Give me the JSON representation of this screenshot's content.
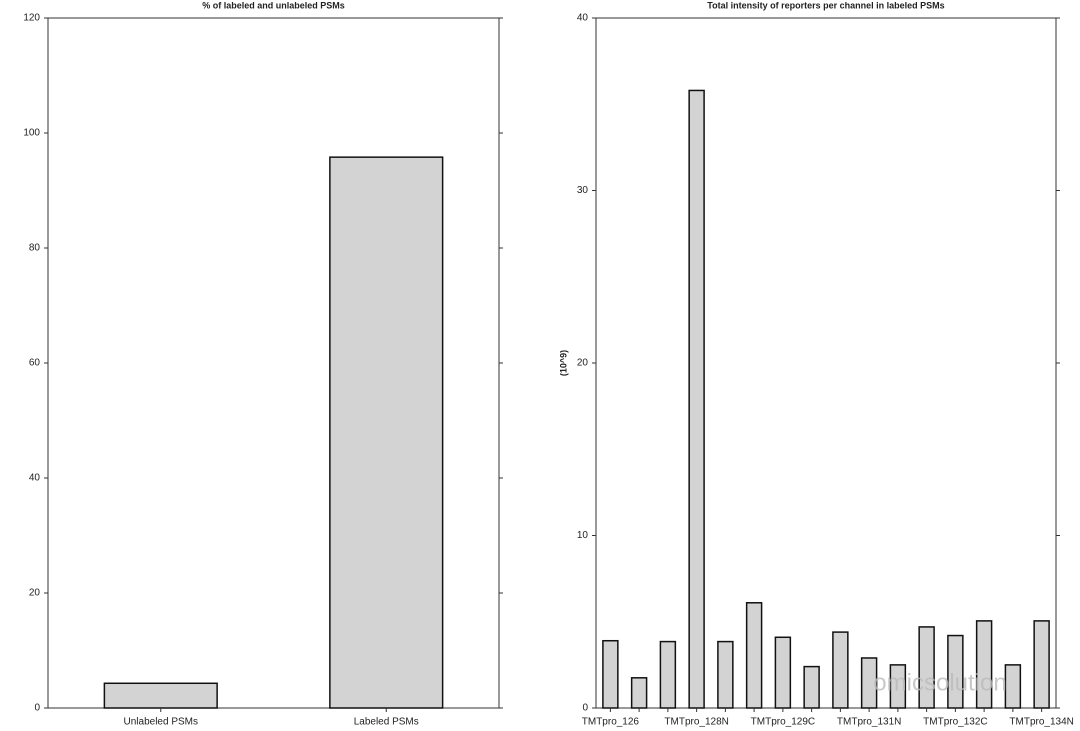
{
  "chart_data": [
    {
      "type": "bar",
      "title": "% of labeled and unlabeled PSMs",
      "categories": [
        "Unlabeled PSMs",
        "Labeled PSMs"
      ],
      "values": [
        4.3,
        95.8
      ],
      "color": "#d3d3d3",
      "ylim": [
        0,
        120
      ],
      "yticks": [
        0,
        20,
        40,
        60,
        80,
        100,
        120
      ]
    },
    {
      "type": "bar",
      "title": "Total intensity of reporters per channel in labeled PSMs",
      "y_label": "(10^9)",
      "categories": [
        "TMTpro_126",
        null,
        null,
        "TMTpro_128N",
        null,
        null,
        "TMTpro_129C",
        null,
        null,
        "TMTpro_131N",
        null,
        null,
        "TMTpro_132C",
        null,
        null,
        "TMTpro_134N"
      ],
      "values": [
        3.9,
        1.75,
        3.85,
        35.8,
        3.85,
        6.1,
        4.1,
        2.4,
        4.4,
        2.9,
        2.5,
        4.7,
        4.2,
        5.05,
        2.5,
        5.05
      ],
      "color": "#d3d3d3",
      "ylim": [
        0,
        40
      ],
      "yticks": [
        0,
        10,
        20,
        30,
        40
      ]
    }
  ],
  "watermark": "omicsolution"
}
